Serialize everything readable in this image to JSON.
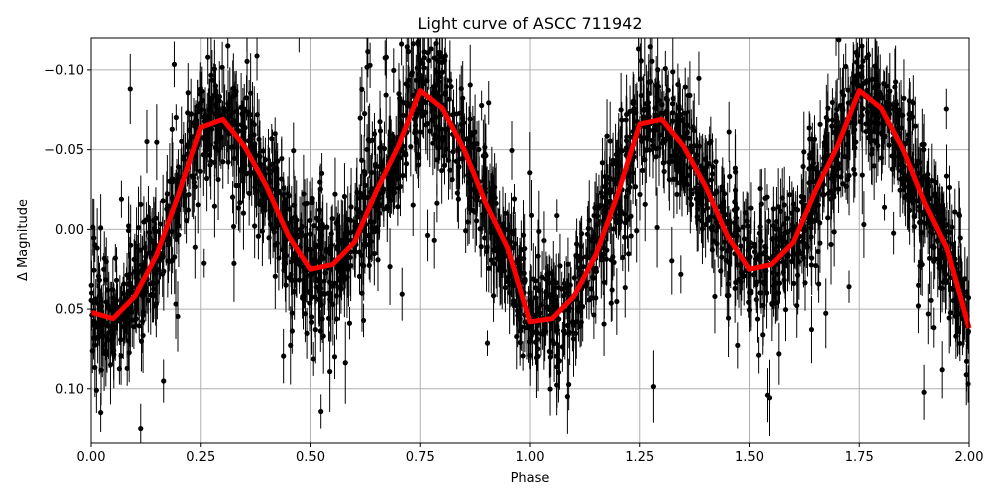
{
  "chart_data": {
    "type": "scatter",
    "title": "Light curve of ASCC 711942",
    "xlabel": "Phase",
    "ylabel": "Δ Magnitude",
    "xlim": [
      0,
      2
    ],
    "ylim": [
      0.134,
      -0.12
    ],
    "y_inverted": true,
    "grid": true,
    "xticks": [
      "0.00",
      "0.25",
      "0.50",
      "0.75",
      "1.00",
      "1.25",
      "1.50",
      "1.75",
      "2.00"
    ],
    "xtick_values": [
      0,
      0.25,
      0.5,
      0.75,
      1,
      1.25,
      1.5,
      1.75,
      2
    ],
    "yticks": [
      "−0.10",
      "−0.05",
      "0.00",
      "0.05",
      "0.10"
    ],
    "ytick_values": [
      -0.1,
      -0.05,
      0,
      0.05,
      0.1
    ],
    "series": [
      {
        "kind": "errorbar-points",
        "color": "#000000",
        "typical_scatter": 0.02,
        "typical_error": 0.02
      },
      {
        "kind": "binned-line",
        "color": "#ff0000",
        "x": [
          0,
          0.05,
          0.1,
          0.15,
          0.2,
          0.25,
          0.3,
          0.35,
          0.4,
          0.45,
          0.5,
          0.55,
          0.6,
          0.65,
          0.7,
          0.75,
          0.8,
          0.85,
          0.9,
          0.95,
          1.0,
          1.05,
          1.1,
          1.15,
          1.2,
          1.25,
          1.3,
          1.35,
          1.4,
          1.45,
          1.5,
          1.55,
          1.6,
          1.65,
          1.7,
          1.75,
          1.8,
          1.85,
          1.9,
          1.95,
          2.0
        ],
        "y": [
          0.052,
          0.056,
          0.042,
          0.016,
          -0.022,
          -0.064,
          -0.069,
          -0.052,
          -0.027,
          0.004,
          0.025,
          0.022,
          0.008,
          -0.024,
          -0.052,
          -0.087,
          -0.076,
          -0.05,
          -0.016,
          0.012,
          0.058,
          0.056,
          0.042,
          0.016,
          -0.022,
          -0.066,
          -0.069,
          -0.052,
          -0.027,
          0.004,
          0.025,
          0.022,
          0.008,
          -0.024,
          -0.052,
          -0.087,
          -0.076,
          -0.05,
          -0.016,
          0.012,
          0.062
        ]
      }
    ]
  }
}
